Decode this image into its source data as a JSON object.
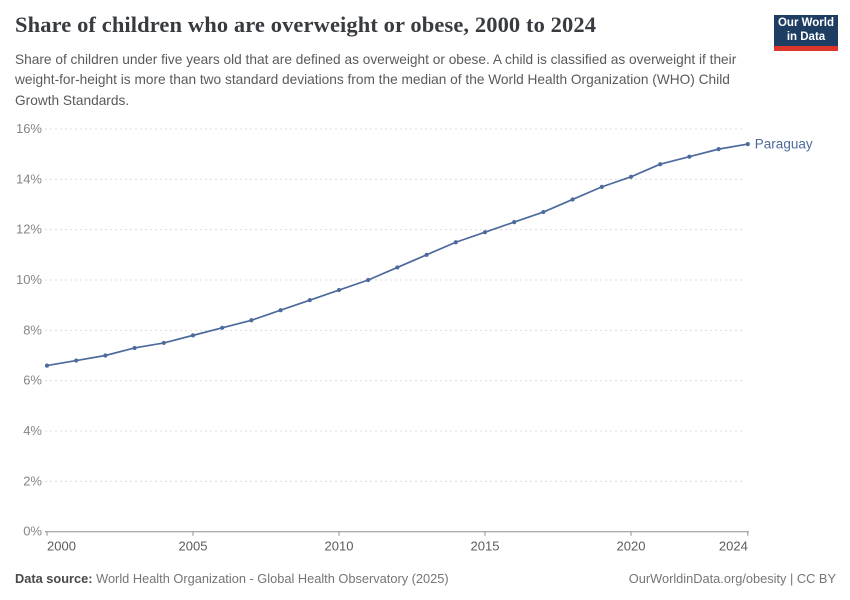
{
  "header": {
    "title": "Share of children who are overweight or obese, 2000 to 2024",
    "subtitle": "Share of children under five years old that are defined as overweight or obese. A child is classified as overweight if their weight-for-height is more than two standard deviations from the median of the World Health Organization (WHO) Child Growth Standards.",
    "logo": {
      "line1": "Our World",
      "line2": "in Data",
      "bg_color": "#1d3d63",
      "bar_color": "#dc352a"
    }
  },
  "chart_data": {
    "type": "line",
    "title": "Share of children who are overweight or obese, 2000 to 2024",
    "x": [
      2000,
      2001,
      2002,
      2003,
      2004,
      2005,
      2006,
      2007,
      2008,
      2009,
      2010,
      2011,
      2012,
      2013,
      2014,
      2015,
      2016,
      2017,
      2018,
      2019,
      2020,
      2021,
      2022,
      2023,
      2024
    ],
    "series": [
      {
        "name": "Paraguay",
        "color": "#4c6a9c",
        "values": [
          6.6,
          6.8,
          7.0,
          7.3,
          7.5,
          7.8,
          8.1,
          8.4,
          8.8,
          9.2,
          9.6,
          10.0,
          10.5,
          11.0,
          11.5,
          11.9,
          12.3,
          12.7,
          13.2,
          13.7,
          14.1,
          14.6,
          14.9,
          15.2,
          15.4
        ]
      }
    ],
    "xlabel": "",
    "ylabel": "",
    "ylim": [
      0,
      16
    ],
    "y_tick_step": 2,
    "y_unit": "%",
    "x_ticks": [
      2000,
      2005,
      2010,
      2015,
      2020,
      2024
    ],
    "grid": true,
    "gridline_color": "#dcdcdc",
    "axis_color": "#8f8f8f",
    "y_label_color": "#858585",
    "x_label_color": "#5c5c5c",
    "legend_position": "end-of-line-label"
  },
  "footer": {
    "source_label": "Data source:",
    "source_text": "World Health Organization - Global Health Observatory (2025)",
    "attribution": "OurWorldinData.org/obesity | CC BY"
  }
}
